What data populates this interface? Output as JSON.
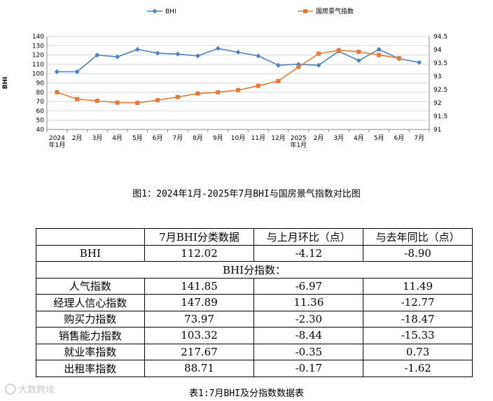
{
  "chart_data": {
    "type": "line",
    "categories": [
      "2024年1月",
      "2月",
      "3月",
      "4月",
      "5月",
      "6月",
      "7月",
      "8月",
      "9月",
      "10月",
      "11月",
      "12月",
      "2025年1月",
      "2月",
      "3月",
      "4月",
      "5月",
      "6月",
      "7月"
    ],
    "x_tick_labels": [
      [
        "2024",
        "年1月"
      ],
      [
        "2月"
      ],
      [
        "3月"
      ],
      [
        "4月"
      ],
      [
        "5月"
      ],
      [
        "6月"
      ],
      [
        "7月"
      ],
      [
        "8月"
      ],
      [
        "9月"
      ],
      [
        "10月"
      ],
      [
        "11月"
      ],
      [
        "12月"
      ],
      [
        "2025",
        "年1月"
      ],
      [
        "2月"
      ],
      [
        "3月"
      ],
      [
        "4月"
      ],
      [
        "5月"
      ],
      [
        "6月"
      ],
      [
        "7月"
      ]
    ],
    "series": [
      {
        "name": "BHI",
        "axis": "left",
        "color": "#4f81bd",
        "marker": "diamond",
        "values": [
          102,
          102,
          120,
          118,
          126,
          122,
          121,
          119,
          127,
          123,
          119,
          109,
          110,
          109,
          124,
          114,
          126,
          116,
          112
        ]
      },
      {
        "name": "国房景气指数",
        "axis": "right",
        "color": "#e07b39",
        "marker": "square",
        "values": [
          92.4,
          92.14,
          92.08,
          92.01,
          92.0,
          92.1,
          92.22,
          92.35,
          92.4,
          92.48,
          92.64,
          92.82,
          93.35,
          93.85,
          93.98,
          93.92,
          93.8,
          93.68,
          null
        ]
      }
    ],
    "ylabel": "BHI",
    "ylim": [
      40,
      140
    ],
    "y_ticks": [
      40,
      50,
      60,
      70,
      80,
      90,
      100,
      110,
      120,
      130,
      140
    ],
    "y2lim": [
      91,
      94.5
    ],
    "y2_ticks": [
      91,
      91.5,
      92,
      92.5,
      93,
      93.5,
      94,
      94.5
    ],
    "grid": true,
    "legend_position": "top"
  },
  "figure_caption": "图1：2024年1月-2025年7月BHI与国房景气指数对比图",
  "table": {
    "header": [
      "",
      "7月BHI分类数据",
      "与上月环比（点）",
      "与去年同比（点）"
    ],
    "bhi_row": {
      "name": "BHI",
      "value": "112.02",
      "mom": "-4.12",
      "yoy": "-8.90"
    },
    "subindex_label": "BHI分指数：",
    "rows": [
      {
        "name": "人气指数",
        "value": "141.85",
        "mom": "-6.97",
        "yoy": "11.49"
      },
      {
        "name": "经理人信心指数",
        "value": "147.89",
        "mom": "11.36",
        "yoy": "-12.77"
      },
      {
        "name": "购买力指数",
        "value": "73.97",
        "mom": "-2.30",
        "yoy": "-18.47"
      },
      {
        "name": "销售能力指数",
        "value": "103.32",
        "mom": "-8.44",
        "yoy": "-15.33"
      },
      {
        "name": "就业率指数",
        "value": "217.67",
        "mom": "-0.35",
        "yoy": "0.73"
      },
      {
        "name": "出租率指数",
        "value": "88.71",
        "mom": "-0.17",
        "yoy": "-1.62"
      }
    ]
  },
  "table_caption": "表1:7月BHI及分指数数据表",
  "watermark_text": "大数跨境"
}
